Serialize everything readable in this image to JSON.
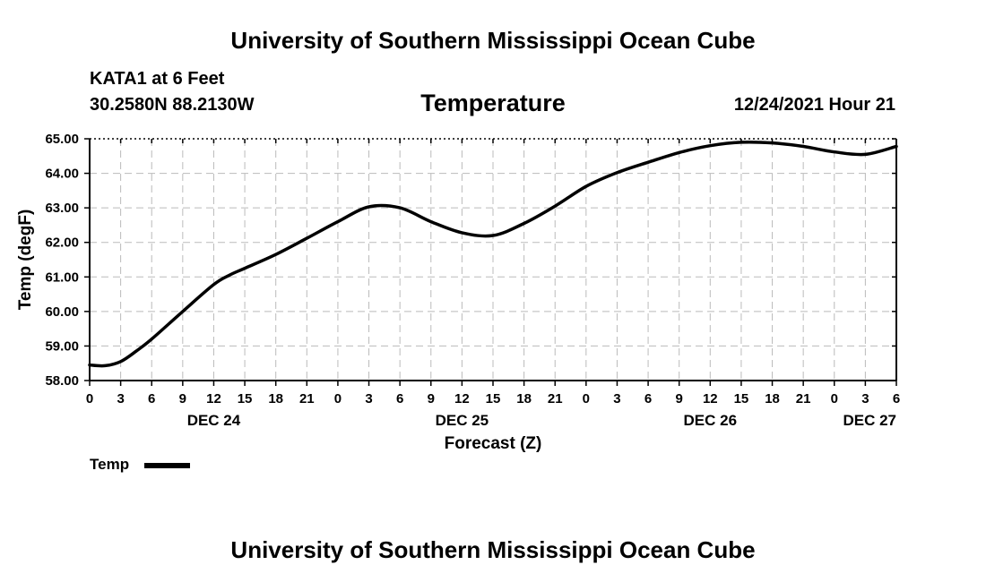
{
  "header": {
    "title": "University of Southern Mississippi Ocean Cube",
    "station": "KATA1 at 6 Feet",
    "coords": "30.2580N  88.2130W",
    "chart_title": "Temperature",
    "timestamp": "12/24/2021 Hour 21"
  },
  "footer": {
    "title": "University of Southern Mississippi Ocean Cube"
  },
  "legend": {
    "label": "Temp"
  },
  "colors": {
    "line": "#000000",
    "grid": "#bbbbbb",
    "background": "#ffffff"
  },
  "chart_data": {
    "type": "line",
    "title": "Temperature",
    "xlabel": "Forecast (Z)",
    "ylabel": "Temp (degF)",
    "ylim": [
      58.0,
      65.0
    ],
    "xlim": [
      0,
      78
    ],
    "y_ticks": [
      "58.00",
      "59.00",
      "60.00",
      "61.00",
      "62.00",
      "63.00",
      "64.00",
      "65.00"
    ],
    "x_tick_labels": [
      "0",
      "3",
      "6",
      "9",
      "12",
      "15",
      "18",
      "21",
      "0",
      "3",
      "6",
      "9",
      "12",
      "15",
      "18",
      "21",
      "0",
      "3",
      "6",
      "9",
      "12",
      "15",
      "18",
      "21",
      "0",
      "3",
      "6"
    ],
    "day_labels": [
      {
        "label": "DEC 24",
        "hour": 12
      },
      {
        "label": "DEC 25",
        "hour": 36
      },
      {
        "label": "DEC 26",
        "hour": 60
      },
      {
        "label": "DEC 27",
        "hour": 78
      }
    ],
    "grid": true,
    "legend_position": "bottom-left",
    "series": [
      {
        "name": "Temp",
        "x": [
          0,
          1.5,
          3,
          4.5,
          6,
          9,
          12,
          13.5,
          15,
          18,
          21,
          24,
          27,
          30,
          33,
          36,
          39,
          42,
          45,
          48,
          51,
          54,
          57,
          60,
          63,
          66,
          69,
          72,
          75,
          78
        ],
        "values": [
          58.45,
          58.43,
          58.55,
          58.85,
          59.2,
          60.0,
          60.78,
          61.05,
          61.25,
          61.65,
          62.12,
          62.6,
          63.03,
          63.0,
          62.6,
          62.28,
          62.2,
          62.55,
          63.05,
          63.62,
          64.02,
          64.32,
          64.6,
          64.8,
          64.9,
          64.88,
          64.78,
          64.62,
          64.55,
          64.78
        ]
      }
    ]
  }
}
